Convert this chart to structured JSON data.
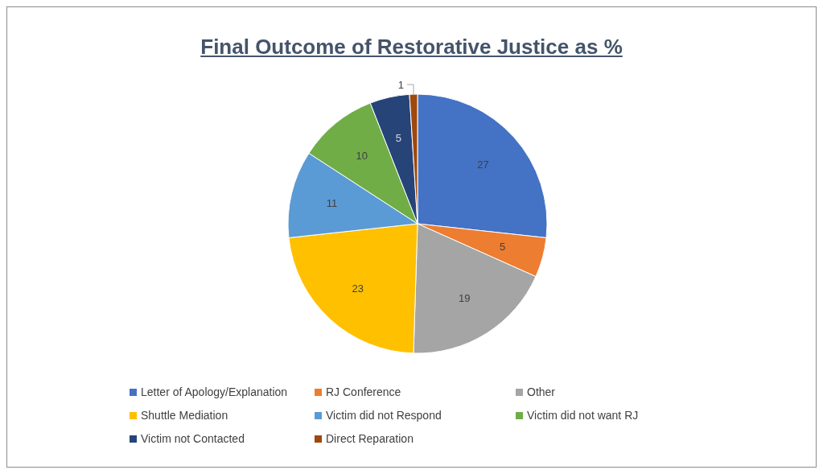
{
  "chart_data": {
    "type": "pie",
    "title": "Final Outcome of Restorative Justice as %",
    "categories": [
      "Letter of Apology/Explanation",
      "RJ Conference",
      "Other",
      "Shuttle Mediation",
      "Victim did not Respond",
      "Victim did not want RJ",
      "Victim not Contacted",
      "Direct Reparation"
    ],
    "values": [
      27,
      5,
      19,
      23,
      11,
      10,
      5,
      1
    ],
    "colors": [
      "#4472c4",
      "#ed7d31",
      "#a5a5a5",
      "#ffc000",
      "#5b9bd5",
      "#70ad47",
      "#264478",
      "#9e480e"
    ],
    "data_labels": true,
    "legend": "bottom"
  }
}
